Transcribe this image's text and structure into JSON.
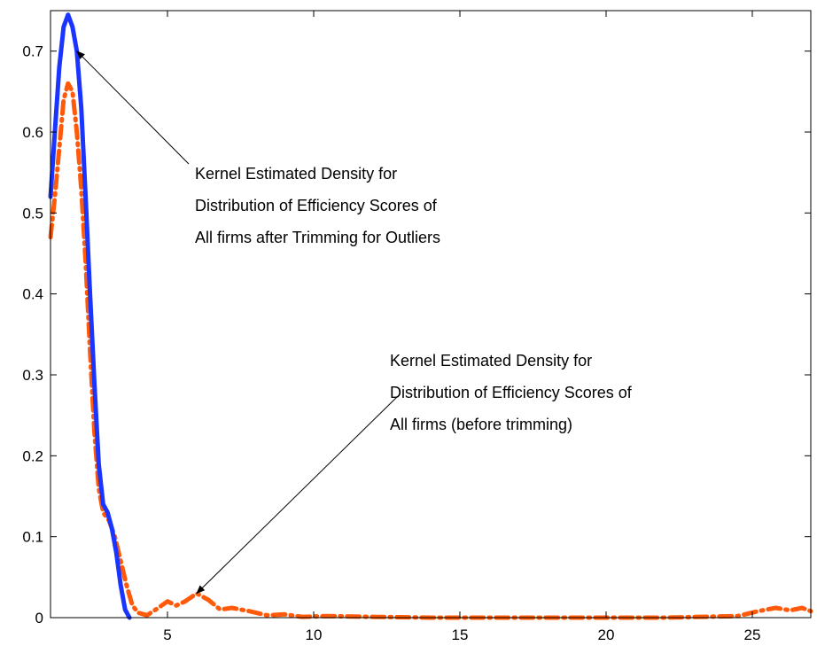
{
  "chart_data": {
    "type": "line",
    "title": "",
    "xlabel": "",
    "ylabel": "",
    "xlim": [
      1,
      27
    ],
    "ylim": [
      0,
      0.75
    ],
    "grid": false,
    "x_ticks": [
      5,
      10,
      15,
      20,
      25
    ],
    "x_tick_labels": [
      "5",
      "10",
      "15",
      "20",
      "25"
    ],
    "y_ticks": [
      0,
      0.1,
      0.2,
      0.3,
      0.4,
      0.5,
      0.6,
      0.7
    ],
    "y_tick_labels": [
      "0",
      "0.1",
      "0.2",
      "0.3",
      "0.4",
      "0.5",
      "0.6",
      "0.7"
    ],
    "series": [
      {
        "color": "#1a35ff",
        "style": "solid",
        "points": [
          [
            1.0,
            0.52
          ],
          [
            1.15,
            0.6
          ],
          [
            1.3,
            0.68
          ],
          [
            1.45,
            0.73
          ],
          [
            1.6,
            0.745
          ],
          [
            1.75,
            0.73
          ],
          [
            1.9,
            0.7
          ],
          [
            2.05,
            0.63
          ],
          [
            2.2,
            0.52
          ],
          [
            2.35,
            0.4
          ],
          [
            2.5,
            0.29
          ],
          [
            2.65,
            0.19
          ],
          [
            2.8,
            0.14
          ],
          [
            2.95,
            0.13
          ],
          [
            3.1,
            0.11
          ],
          [
            3.25,
            0.08
          ],
          [
            3.4,
            0.04
          ],
          [
            3.55,
            0.01
          ],
          [
            3.7,
            0.0
          ]
        ]
      },
      {
        "color": "#ff5a0a",
        "style": "dash-dot",
        "points": [
          [
            1.0,
            0.47
          ],
          [
            1.15,
            0.52
          ],
          [
            1.3,
            0.58
          ],
          [
            1.45,
            0.64
          ],
          [
            1.6,
            0.66
          ],
          [
            1.75,
            0.65
          ],
          [
            1.9,
            0.6
          ],
          [
            2.05,
            0.53
          ],
          [
            2.2,
            0.44
          ],
          [
            2.35,
            0.33
          ],
          [
            2.5,
            0.23
          ],
          [
            2.65,
            0.16
          ],
          [
            2.8,
            0.13
          ],
          [
            3.0,
            0.12
          ],
          [
            3.2,
            0.1
          ],
          [
            3.4,
            0.07
          ],
          [
            3.6,
            0.04
          ],
          [
            3.8,
            0.015
          ],
          [
            4.0,
            0.006
          ],
          [
            4.3,
            0.003
          ],
          [
            4.6,
            0.01
          ],
          [
            5.0,
            0.02
          ],
          [
            5.3,
            0.015
          ],
          [
            5.6,
            0.02
          ],
          [
            6.0,
            0.03
          ],
          [
            6.4,
            0.022
          ],
          [
            6.8,
            0.01
          ],
          [
            7.2,
            0.012
          ],
          [
            7.8,
            0.008
          ],
          [
            8.4,
            0.003
          ],
          [
            9.0,
            0.004
          ],
          [
            9.6,
            0.001
          ],
          [
            10.5,
            0.002
          ],
          [
            12.0,
            0.001
          ],
          [
            14.0,
            0.0
          ],
          [
            18.0,
            0.0
          ],
          [
            22.0,
            0.0
          ],
          [
            24.5,
            0.002
          ],
          [
            25.2,
            0.008
          ],
          [
            25.8,
            0.012
          ],
          [
            26.3,
            0.009
          ],
          [
            26.7,
            0.012
          ],
          [
            27.0,
            0.008
          ]
        ]
      }
    ],
    "annotations": [
      {
        "lines": [
          "Kernel Estimated Density for",
          "Distribution of Efficiency Scores of",
          "All firms after Trimming for Outliers"
        ],
        "arrow_to": [
          1.9,
          0.7
        ]
      },
      {
        "lines": [
          "Kernel Estimated Density for",
          "Distribution of Efficiency Scores of",
          "All firms (before trimming)"
        ],
        "arrow_to": [
          6.0,
          0.03
        ]
      }
    ]
  }
}
